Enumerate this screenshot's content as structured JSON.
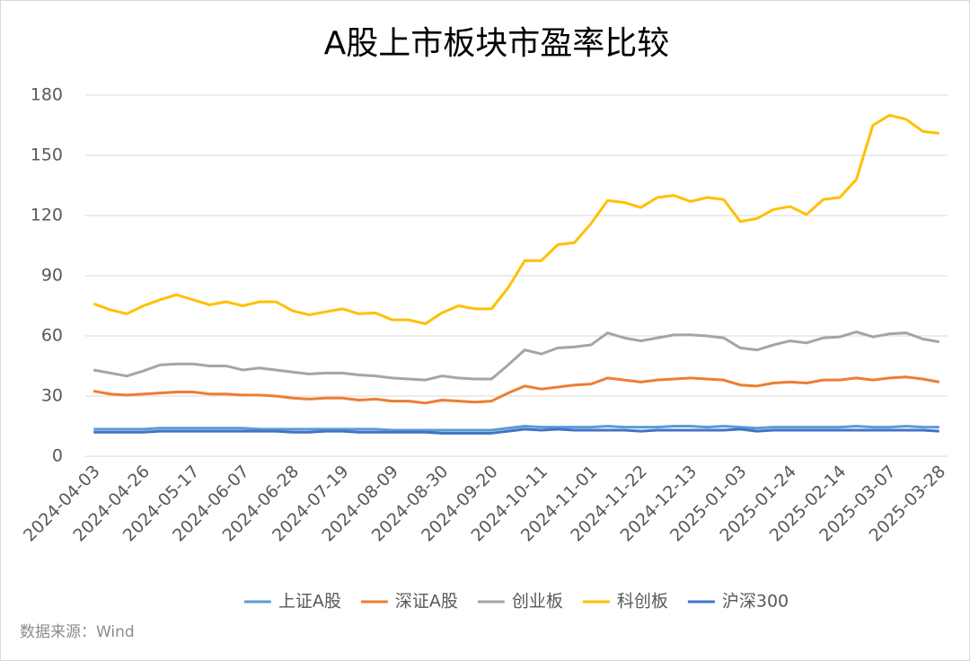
{
  "chart_data": {
    "type": "line",
    "title": "A股上市板块市盈率比较",
    "source": "数据来源：Wind",
    "categories": [
      "2024-04-03",
      null,
      null,
      "2024-04-26",
      null,
      null,
      "2024-05-17",
      null,
      null,
      "2024-06-07",
      null,
      null,
      "2024-06-28",
      null,
      null,
      "2024-07-19",
      null,
      null,
      "2024-08-09",
      null,
      null,
      "2024-08-30",
      null,
      null,
      "2024-09-20",
      null,
      null,
      "2024-10-11",
      null,
      null,
      "2024-11-01",
      null,
      null,
      "2024-11-22",
      null,
      null,
      "2024-12-13",
      null,
      null,
      "2025-01-03",
      null,
      null,
      "2025-01-24",
      null,
      null,
      "2025-02-14",
      null,
      null,
      "2025-03-07",
      null,
      null,
      "2025-03-28"
    ],
    "ylim": [
      0,
      180
    ],
    "yticks": [
      0,
      30,
      60,
      90,
      120,
      150,
      180
    ],
    "grid": true,
    "legend": "bottom",
    "series": [
      {
        "name": "上证A股",
        "color": "#5b9bd5",
        "values": [
          13.5,
          13.5,
          13.5,
          13.5,
          14,
          14,
          14,
          14,
          14,
          14,
          13.5,
          13.5,
          13.5,
          13.5,
          13.5,
          13.5,
          13.5,
          13.5,
          13,
          13,
          13,
          13,
          13,
          13,
          13,
          14,
          15,
          14.5,
          14.5,
          14.5,
          14.5,
          15,
          14.5,
          14.5,
          14.5,
          15,
          15,
          14.5,
          15,
          14.5,
          14,
          14.5,
          14.5,
          14.5,
          14.5,
          14.5,
          15,
          14.5,
          14.5,
          15,
          14.5,
          14.5
        ]
      },
      {
        "name": "深证A股",
        "color": "#ed7d31",
        "values": [
          32.5,
          31,
          30.5,
          31,
          31.5,
          32,
          32,
          31,
          31,
          30.5,
          30.5,
          30,
          29,
          28.5,
          29,
          29,
          28,
          28.5,
          27.5,
          27.5,
          26.5,
          28,
          27.5,
          27,
          27.5,
          31.5,
          35,
          33.5,
          34.5,
          35.5,
          36,
          39,
          38,
          37,
          38,
          38.5,
          39,
          38.5,
          38,
          35.5,
          35,
          36.5,
          37,
          36.5,
          38,
          38,
          39,
          38,
          39,
          39.5,
          38.5,
          37
        ]
      },
      {
        "name": "创业板",
        "color": "#a5a5a5",
        "values": [
          43,
          41.5,
          40,
          42.5,
          45.5,
          46,
          46,
          45,
          45,
          43,
          44,
          43,
          42,
          41,
          41.5,
          41.5,
          40.5,
          40,
          39,
          38.5,
          38,
          40,
          39,
          38.5,
          38.5,
          45.5,
          53,
          51,
          54,
          54.5,
          55.5,
          61.5,
          59,
          57.5,
          59,
          60.5,
          60.5,
          60,
          59,
          54,
          53,
          55.5,
          57.5,
          56.5,
          59,
          59.5,
          62,
          59.5,
          61,
          61.5,
          58.5,
          57
        ]
      },
      {
        "name": "科创板",
        "color": "#ffc000",
        "values": [
          76,
          73,
          71,
          75,
          78,
          80.5,
          78,
          75.5,
          77,
          75,
          77,
          77,
          72.5,
          70.5,
          72,
          73.5,
          71,
          71.5,
          68,
          68,
          66,
          71.5,
          75,
          73.5,
          73.5,
          84,
          97.5,
          97.5,
          105.5,
          106.5,
          116,
          127.5,
          126.5,
          124,
          129,
          130,
          127,
          129,
          128,
          117,
          118.5,
          123,
          124.5,
          120.5,
          128,
          129,
          138,
          165,
          170,
          168,
          162,
          161
        ]
      },
      {
        "name": "沪深300",
        "color": "#4472c4",
        "values": [
          12,
          12,
          12,
          12,
          12.5,
          12.5,
          12.5,
          12.5,
          12.5,
          12.5,
          12.5,
          12.5,
          12,
          12,
          12.5,
          12.5,
          12,
          12,
          12,
          12,
          12,
          11.5,
          11.5,
          11.5,
          11.5,
          12.5,
          13.5,
          13,
          13.5,
          13,
          13,
          13,
          13,
          12.5,
          13,
          13,
          13,
          13,
          13,
          13.5,
          12.5,
          13,
          13,
          13,
          13,
          13,
          13,
          13,
          13,
          13,
          13,
          12.5
        ]
      }
    ]
  }
}
